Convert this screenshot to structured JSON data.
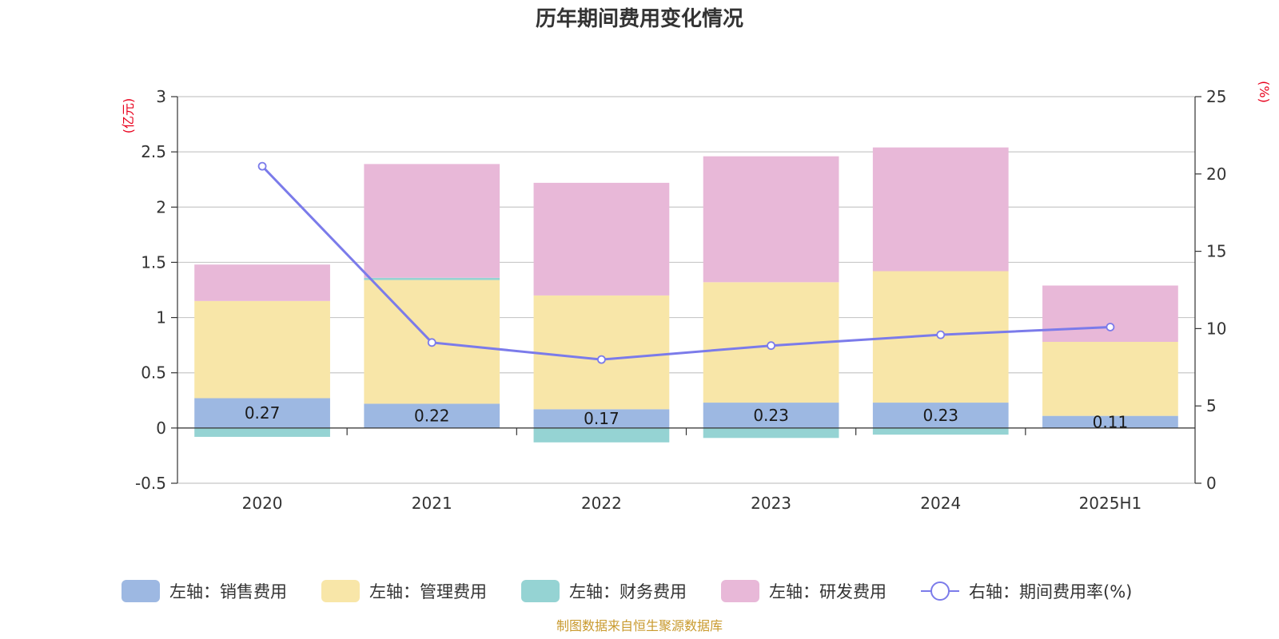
{
  "colors": {
    "sales": "#9db8e2",
    "admin": "#f8e6a8",
    "finance": "#95d3d3",
    "rnd": "#e8b8d8",
    "rate": "#7b7bea",
    "unit": "#e8001c",
    "source": "#c99a2e"
  },
  "chart_data": {
    "type": "bar",
    "stacked": true,
    "title": "历年期间费用变化情况",
    "categories": [
      "2020",
      "2021",
      "2022",
      "2023",
      "2024",
      "2025H1"
    ],
    "left_axis": {
      "unit": "(亿元)",
      "min": -0.5,
      "max": 3,
      "ticks": [
        "-0.5",
        "0",
        "0.5",
        "1",
        "1.5",
        "2",
        "2.5",
        "3"
      ]
    },
    "right_axis": {
      "unit": "(%)",
      "min": 0,
      "max": 25,
      "ticks": [
        "0",
        "5",
        "10",
        "15",
        "20",
        "25"
      ]
    },
    "grid": true,
    "legend_position": "bottom",
    "series": [
      {
        "key": "sales",
        "name": "左轴：销售费用",
        "axis": "left",
        "values": [
          0.27,
          0.22,
          0.17,
          0.23,
          0.23,
          0.11
        ],
        "labels": [
          "0.27",
          "0.22",
          "0.17",
          "0.23",
          "0.23",
          "0.11"
        ]
      },
      {
        "key": "admin",
        "name": "左轴：管理费用",
        "axis": "left",
        "values": [
          0.88,
          1.12,
          1.03,
          1.09,
          1.19,
          0.67
        ]
      },
      {
        "key": "finance",
        "name": "左轴：财务费用",
        "axis": "left",
        "values": [
          -0.08,
          0.02,
          -0.13,
          -0.09,
          -0.06,
          0.0
        ]
      },
      {
        "key": "rnd",
        "name": "左轴：研发费用",
        "axis": "left",
        "values": [
          0.33,
          1.03,
          1.02,
          1.14,
          1.12,
          0.51
        ]
      },
      {
        "key": "rate",
        "name": "右轴：期间费用率(%)",
        "axis": "right",
        "type": "line",
        "values": [
          20.5,
          9.1,
          8.0,
          8.9,
          9.6,
          10.1
        ]
      }
    ]
  },
  "source_text": "制图数据来自恒生聚源数据库"
}
